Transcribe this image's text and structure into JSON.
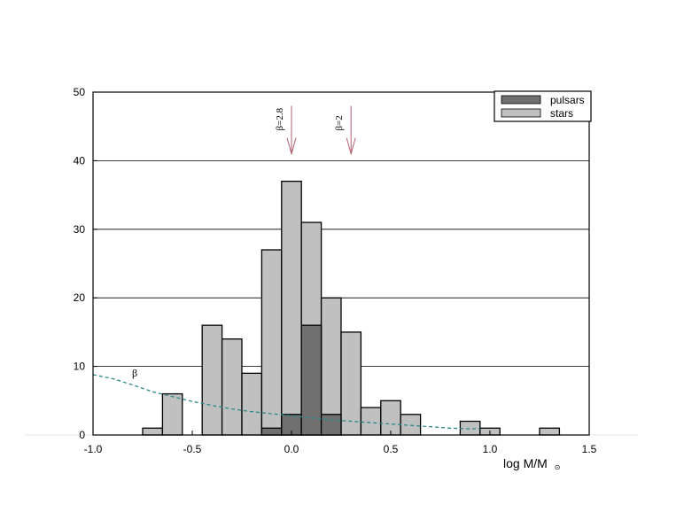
{
  "chart_data": {
    "type": "bar",
    "xlabel": "log M/M",
    "xlabel_sub": "⊙",
    "xlim": [
      -1.0,
      1.5
    ],
    "ylim": [
      0,
      50
    ],
    "x_ticks": [
      "-1.0",
      "-0.5",
      "0.0",
      "0.5",
      "1.0",
      "1.5"
    ],
    "y_ticks": [
      "0",
      "10",
      "20",
      "30",
      "40",
      "50"
    ],
    "y_grid": true,
    "legend_position": "top-right",
    "bin_width": 0.1,
    "bins": [
      {
        "x0": -0.75,
        "stars": 1,
        "pulsars": 0
      },
      {
        "x0": -0.65,
        "stars": 6,
        "pulsars": 0
      },
      {
        "x0": -0.45,
        "stars": 16,
        "pulsars": 0
      },
      {
        "x0": -0.35,
        "stars": 14,
        "pulsars": 0
      },
      {
        "x0": -0.25,
        "stars": 9,
        "pulsars": 0
      },
      {
        "x0": -0.15,
        "stars": 27,
        "pulsars": 1
      },
      {
        "x0": -0.05,
        "stars": 37,
        "pulsars": 3
      },
      {
        "x0": 0.05,
        "stars": 31,
        "pulsars": 16
      },
      {
        "x0": 0.15,
        "stars": 20,
        "pulsars": 3
      },
      {
        "x0": 0.25,
        "stars": 15,
        "pulsars": 0
      },
      {
        "x0": 0.35,
        "stars": 4,
        "pulsars": 0
      },
      {
        "x0": 0.45,
        "stars": 5,
        "pulsars": 0
      },
      {
        "x0": 0.55,
        "stars": 3,
        "pulsars": 0
      },
      {
        "x0": 0.85,
        "stars": 2,
        "pulsars": 0
      },
      {
        "x0": 0.95,
        "stars": 1,
        "pulsars": 0
      },
      {
        "x0": 1.25,
        "stars": 1,
        "pulsars": 0
      }
    ],
    "series": [
      {
        "name": "pulsars",
        "color": "#707070"
      },
      {
        "name": "stars",
        "color": "#c0c0c0"
      }
    ],
    "curve": {
      "label": "β",
      "color": "#2a8a8a",
      "style": "dashed",
      "points": [
        [
          -1.0,
          8.8
        ],
        [
          -0.9,
          8.2
        ],
        [
          -0.8,
          7.3
        ],
        [
          -0.7,
          6.3
        ],
        [
          -0.6,
          5.6
        ],
        [
          -0.5,
          4.9
        ],
        [
          -0.4,
          4.3
        ],
        [
          -0.3,
          3.8
        ],
        [
          -0.2,
          3.4
        ],
        [
          -0.1,
          3.1
        ],
        [
          0.0,
          2.8
        ],
        [
          0.1,
          2.5
        ],
        [
          0.2,
          2.2
        ],
        [
          0.3,
          2.0
        ],
        [
          0.4,
          1.8
        ],
        [
          0.5,
          1.6
        ],
        [
          0.6,
          1.4
        ],
        [
          0.7,
          1.2
        ],
        [
          0.8,
          1.0
        ],
        [
          0.9,
          0.9
        ],
        [
          0.95,
          0.9
        ]
      ]
    },
    "annotations": [
      {
        "text": "β=2.8",
        "x": 0.0,
        "arrow_top": 48,
        "arrow_bottom": 41,
        "color": "#b06070"
      },
      {
        "text": "β=2",
        "x": 0.3,
        "arrow_top": 48,
        "arrow_bottom": 41,
        "color": "#b06070"
      }
    ]
  }
}
